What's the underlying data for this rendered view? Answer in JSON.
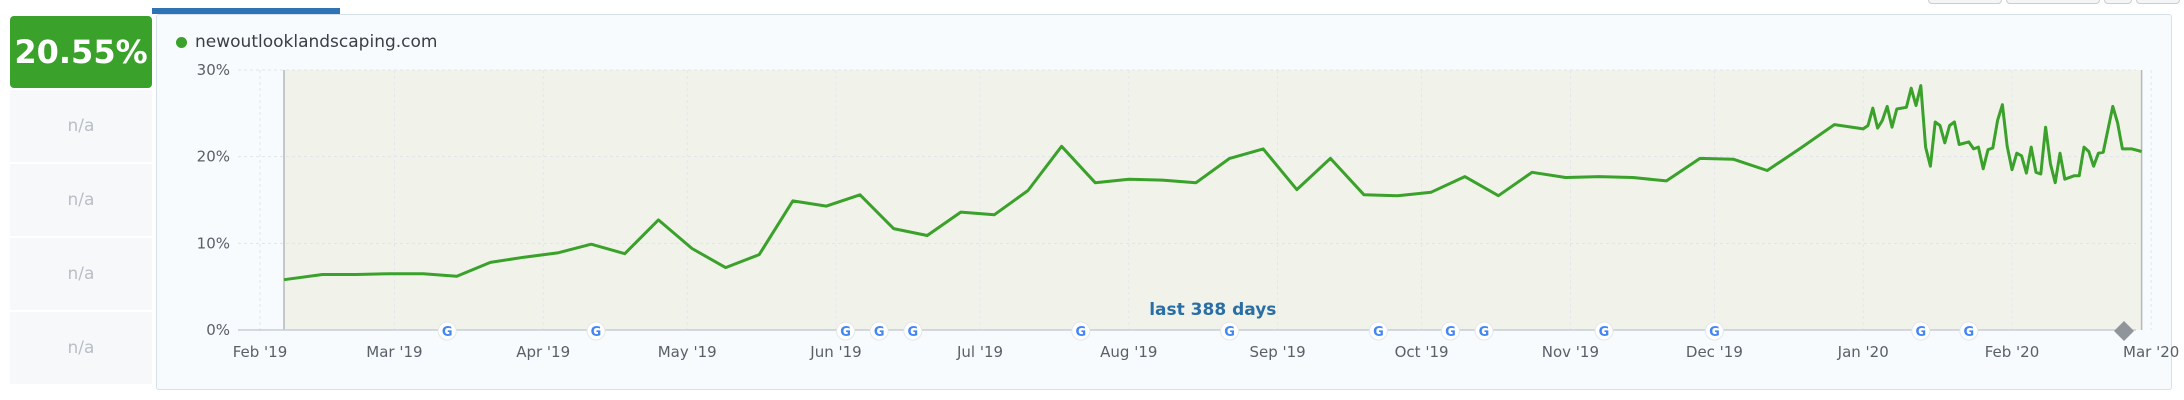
{
  "score": "20.55%",
  "na_rows": [
    "n/a",
    "n/a",
    "n/a",
    "n/a"
  ],
  "legend": {
    "label": "newoutlooklandscaping.com",
    "color": "#3aa12a"
  },
  "period_label": "last 388 days",
  "chart_data": {
    "type": "line",
    "x_start": "2019-02-01",
    "x_ticks": [
      {
        "label": "Feb '19",
        "date": "2019-02-01"
      },
      {
        "label": "Mar '19",
        "date": "2019-03-01"
      },
      {
        "label": "Apr '19",
        "date": "2019-04-01"
      },
      {
        "label": "May '19",
        "date": "2019-05-01"
      },
      {
        "label": "Jun '19",
        "date": "2019-06-01"
      },
      {
        "label": "Jul '19",
        "date": "2019-07-01"
      },
      {
        "label": "Aug '19",
        "date": "2019-08-01"
      },
      {
        "label": "Sep '19",
        "date": "2019-09-01"
      },
      {
        "label": "Oct '19",
        "date": "2019-10-01"
      },
      {
        "label": "Nov '19",
        "date": "2019-11-01"
      },
      {
        "label": "Dec '19",
        "date": "2019-12-01"
      },
      {
        "label": "Jan '20",
        "date": "2020-01-01"
      },
      {
        "label": "Feb '20",
        "date": "2020-02-01"
      },
      {
        "label": "Mar '20",
        "date": "2020-03-01"
      }
    ],
    "y_ticks": [
      "0%",
      "10%",
      "20%",
      "30%"
    ],
    "ylim": [
      0,
      30
    ],
    "range_start": "2019-02-06",
    "range_end": "2020-02-28",
    "grid": true,
    "series": [
      {
        "name": "newoutlooklandscaping.com",
        "color": "#3aa12a",
        "points": [
          [
            "2019-02-06",
            5.8
          ],
          [
            "2019-02-14",
            6.4
          ],
          [
            "2019-02-21",
            6.4
          ],
          [
            "2019-02-28",
            6.5
          ],
          [
            "2019-03-07",
            6.5
          ],
          [
            "2019-03-14",
            6.2
          ],
          [
            "2019-03-21",
            7.8
          ],
          [
            "2019-03-28",
            8.4
          ],
          [
            "2019-04-04",
            8.9
          ],
          [
            "2019-04-11",
            9.9
          ],
          [
            "2019-04-18",
            8.8
          ],
          [
            "2019-04-25",
            12.7
          ],
          [
            "2019-05-02",
            9.4
          ],
          [
            "2019-05-09",
            7.2
          ],
          [
            "2019-05-16",
            8.7
          ],
          [
            "2019-05-23",
            14.9
          ],
          [
            "2019-05-30",
            14.3
          ],
          [
            "2019-06-06",
            15.6
          ],
          [
            "2019-06-13",
            11.7
          ],
          [
            "2019-06-20",
            10.9
          ],
          [
            "2019-06-27",
            13.6
          ],
          [
            "2019-07-04",
            13.3
          ],
          [
            "2019-07-11",
            16.1
          ],
          [
            "2019-07-18",
            21.2
          ],
          [
            "2019-07-25",
            17.0
          ],
          [
            "2019-08-01",
            17.4
          ],
          [
            "2019-08-08",
            17.3
          ],
          [
            "2019-08-15",
            17.0
          ],
          [
            "2019-08-22",
            19.8
          ],
          [
            "2019-08-29",
            20.9
          ],
          [
            "2019-09-05",
            16.2
          ],
          [
            "2019-09-12",
            19.8
          ],
          [
            "2019-09-19",
            15.6
          ],
          [
            "2019-09-26",
            15.5
          ],
          [
            "2019-10-03",
            15.9
          ],
          [
            "2019-10-10",
            17.7
          ],
          [
            "2019-10-17",
            15.5
          ],
          [
            "2019-10-24",
            18.2
          ],
          [
            "2019-10-31",
            17.6
          ],
          [
            "2019-11-07",
            17.7
          ],
          [
            "2019-11-14",
            17.6
          ],
          [
            "2019-11-21",
            17.2
          ],
          [
            "2019-11-28",
            19.8
          ],
          [
            "2019-12-05",
            19.7
          ],
          [
            "2019-12-12",
            18.4
          ],
          [
            "2019-12-19",
            21.0
          ],
          [
            "2019-12-26",
            23.7
          ],
          [
            "2020-01-01",
            23.2
          ],
          [
            "2020-01-02",
            23.6
          ],
          [
            "2020-01-03",
            25.6
          ],
          [
            "2020-01-04",
            23.3
          ],
          [
            "2020-01-05",
            24.2
          ],
          [
            "2020-01-06",
            25.8
          ],
          [
            "2020-01-07",
            23.4
          ],
          [
            "2020-01-08",
            25.5
          ],
          [
            "2020-01-10",
            25.7
          ],
          [
            "2020-01-11",
            27.9
          ],
          [
            "2020-01-12",
            25.9
          ],
          [
            "2020-01-13",
            28.2
          ],
          [
            "2020-01-14",
            21.1
          ],
          [
            "2020-01-15",
            18.9
          ],
          [
            "2020-01-16",
            24.0
          ],
          [
            "2020-01-17",
            23.6
          ],
          [
            "2020-01-18",
            21.6
          ],
          [
            "2020-01-19",
            23.6
          ],
          [
            "2020-01-20",
            24.0
          ],
          [
            "2020-01-21",
            21.4
          ],
          [
            "2020-01-23",
            21.7
          ],
          [
            "2020-01-24",
            20.9
          ],
          [
            "2020-01-25",
            21.1
          ],
          [
            "2020-01-26",
            18.6
          ],
          [
            "2020-01-27",
            20.8
          ],
          [
            "2020-01-28",
            21.0
          ],
          [
            "2020-01-29",
            24.2
          ],
          [
            "2020-01-30",
            26.0
          ],
          [
            "2020-01-31",
            21.2
          ],
          [
            "2020-02-01",
            18.5
          ],
          [
            "2020-02-02",
            20.4
          ],
          [
            "2020-02-03",
            20.1
          ],
          [
            "2020-02-04",
            18.1
          ],
          [
            "2020-02-05",
            21.1
          ],
          [
            "2020-02-06",
            18.2
          ],
          [
            "2020-02-07",
            18.0
          ],
          [
            "2020-02-08",
            23.4
          ],
          [
            "2020-02-09",
            19.2
          ],
          [
            "2020-02-10",
            17.0
          ],
          [
            "2020-02-11",
            20.4
          ],
          [
            "2020-02-12",
            17.4
          ],
          [
            "2020-02-14",
            17.8
          ],
          [
            "2020-02-15",
            17.8
          ],
          [
            "2020-02-16",
            21.1
          ],
          [
            "2020-02-17",
            20.6
          ],
          [
            "2020-02-18",
            18.9
          ],
          [
            "2020-02-19",
            20.4
          ],
          [
            "2020-02-20",
            20.5
          ],
          [
            "2020-02-22",
            25.8
          ],
          [
            "2020-02-23",
            23.9
          ],
          [
            "2020-02-24",
            20.9
          ],
          [
            "2020-02-26",
            20.9
          ],
          [
            "2020-02-28",
            20.6
          ]
        ]
      }
    ],
    "google_update_dates": [
      "2019-03-12",
      "2019-04-12",
      "2019-06-03",
      "2019-06-10",
      "2019-06-17",
      "2019-07-22",
      "2019-08-22",
      "2019-09-22",
      "2019-10-07",
      "2019-10-14",
      "2019-11-08",
      "2019-12-01",
      "2020-01-13",
      "2020-01-23"
    ]
  }
}
